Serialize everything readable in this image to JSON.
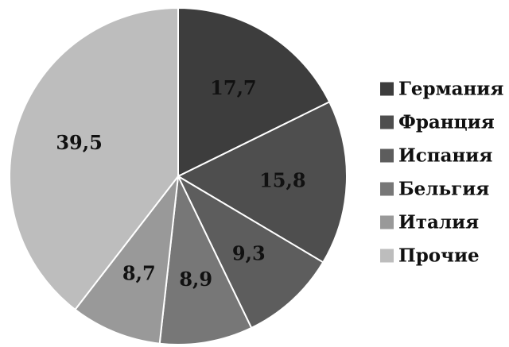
{
  "chart_data": {
    "type": "pie",
    "title": "",
    "legend_position": "right",
    "slices": [
      {
        "label": "Германия",
        "value": 17.7,
        "display": "17,7",
        "color": "#3d3d3d"
      },
      {
        "label": "Франция",
        "value": 15.8,
        "display": "15,8",
        "color": "#4e4e4e"
      },
      {
        "label": "Испания",
        "value": 9.3,
        "display": "9,3",
        "color": "#5d5d5d"
      },
      {
        "label": "Бельгия",
        "value": 8.9,
        "display": "8,9",
        "color": "#777777"
      },
      {
        "label": "Италия",
        "value": 8.7,
        "display": "8,7",
        "color": "#999999"
      },
      {
        "label": "Прочие",
        "value": 39.5,
        "display": "39,5",
        "color": "#bdbdbd"
      }
    ]
  }
}
